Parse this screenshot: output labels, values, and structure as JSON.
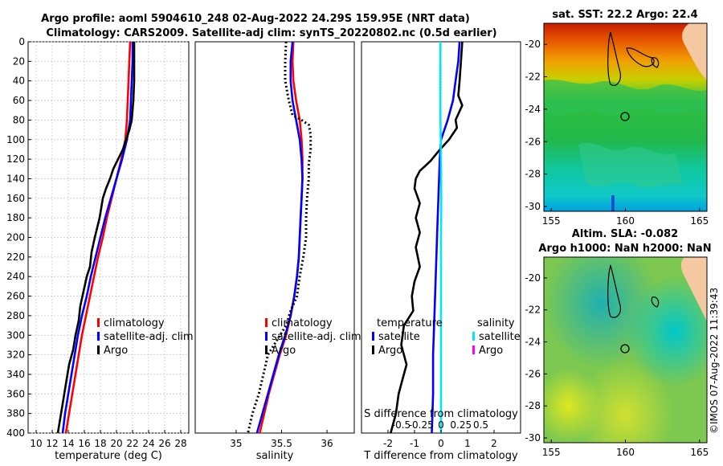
{
  "page": {
    "title_line1": "Argo profile: aoml 5904610_248 02-Aug-2022 24.29S 159.95E (NRT data)",
    "title_line2": "Climatology: CARS2009. Satellite-adj clim: synTS_20220802.nc (0.5d earlier)",
    "credit": "©IMOS 07-Aug-2022 11:39:43"
  },
  "chart_data": [
    {
      "id": "temperature",
      "type": "line",
      "xlabel": "temperature (deg C)",
      "ylabel": "",
      "xlim": [
        9,
        29
      ],
      "ylim": [
        400,
        0
      ],
      "xticks": [
        10,
        12,
        14,
        16,
        18,
        20,
        22,
        24,
        26,
        28
      ],
      "yticks": [
        0,
        20,
        40,
        60,
        80,
        100,
        120,
        140,
        160,
        180,
        200,
        220,
        240,
        260,
        280,
        300,
        320,
        340,
        360,
        380,
        400
      ],
      "grid": true,
      "legend": [
        "climatology",
        "satellite-adj. clim",
        "Argo"
      ],
      "series": [
        {
          "name": "climatology",
          "color": "#ff0000",
          "style": "solid",
          "points": [
            [
              21.7,
              0
            ],
            [
              21.6,
              20
            ],
            [
              21.5,
              40
            ],
            [
              21.4,
              60
            ],
            [
              21.3,
              80
            ],
            [
              21.1,
              100
            ],
            [
              20.6,
              120
            ],
            [
              20.0,
              140
            ],
            [
              19.4,
              160
            ],
            [
              18.8,
              180
            ],
            [
              18.3,
              200
            ],
            [
              17.7,
              220
            ],
            [
              17.2,
              240
            ],
            [
              16.7,
              260
            ],
            [
              16.2,
              280
            ],
            [
              15.7,
              300
            ],
            [
              15.3,
              320
            ],
            [
              14.9,
              340
            ],
            [
              14.5,
              360
            ],
            [
              14.1,
              380
            ],
            [
              13.7,
              400
            ]
          ]
        },
        {
          "name": "satellite-adj. clim",
          "color": "#0000ff",
          "style": "solid",
          "points": [
            [
              22.0,
              0
            ],
            [
              22.0,
              20
            ],
            [
              21.9,
              40
            ],
            [
              21.8,
              60
            ],
            [
              21.7,
              80
            ],
            [
              21.3,
              100
            ],
            [
              20.7,
              120
            ],
            [
              20.0,
              140
            ],
            [
              19.3,
              160
            ],
            [
              18.6,
              180
            ],
            [
              18.0,
              200
            ],
            [
              17.4,
              220
            ],
            [
              16.8,
              240
            ],
            [
              16.3,
              260
            ],
            [
              15.7,
              280
            ],
            [
              15.2,
              300
            ],
            [
              14.8,
              320
            ],
            [
              14.4,
              340
            ],
            [
              14.0,
              360
            ],
            [
              13.6,
              380
            ],
            [
              13.3,
              400
            ]
          ]
        },
        {
          "name": "Argo",
          "color": "#000000",
          "style": "solid",
          "points": [
            [
              22.2,
              0
            ],
            [
              22.2,
              20
            ],
            [
              22.2,
              40
            ],
            [
              22.1,
              60
            ],
            [
              21.9,
              80
            ],
            [
              21.6,
              90
            ],
            [
              21.2,
              100
            ],
            [
              20.8,
              110
            ],
            [
              20.2,
              120
            ],
            [
              19.6,
              130
            ],
            [
              19.2,
              140
            ],
            [
              18.7,
              150
            ],
            [
              18.3,
              160
            ],
            [
              18.1,
              170
            ],
            [
              17.9,
              180
            ],
            [
              17.6,
              190
            ],
            [
              17.3,
              200
            ],
            [
              16.9,
              215
            ],
            [
              16.7,
              230
            ],
            [
              16.3,
              240
            ],
            [
              15.9,
              255
            ],
            [
              15.5,
              270
            ],
            [
              15.3,
              285
            ],
            [
              14.9,
              300
            ],
            [
              14.6,
              315
            ],
            [
              14.1,
              330
            ],
            [
              13.8,
              345
            ],
            [
              13.5,
              360
            ],
            [
              13.2,
              375
            ],
            [
              12.9,
              390
            ],
            [
              12.7,
              400
            ]
          ]
        }
      ]
    },
    {
      "id": "salinity",
      "type": "line",
      "xlabel": "salinity",
      "ylabel": "",
      "xlim": [
        34.55,
        36.3
      ],
      "ylim": [
        400,
        0
      ],
      "xticks": [
        35,
        35.5,
        36
      ],
      "grid": false,
      "legend": [
        "climatology",
        "satellite-adj. clim",
        "Argo"
      ],
      "series": [
        {
          "name": "climatology",
          "color": "#ff0000",
          "style": "solid",
          "points": [
            [
              35.63,
              0
            ],
            [
              35.62,
              20
            ],
            [
              35.63,
              40
            ],
            [
              35.66,
              60
            ],
            [
              35.7,
              80
            ],
            [
              35.72,
              100
            ],
            [
              35.73,
              120
            ],
            [
              35.73,
              140
            ],
            [
              35.72,
              160
            ],
            [
              35.71,
              180
            ],
            [
              35.7,
              200
            ],
            [
              35.69,
              220
            ],
            [
              35.67,
              240
            ],
            [
              35.64,
              260
            ],
            [
              35.6,
              280
            ],
            [
              35.55,
              300
            ],
            [
              35.48,
              320
            ],
            [
              35.42,
              340
            ],
            [
              35.36,
              360
            ],
            [
              35.31,
              380
            ],
            [
              35.26,
              400
            ]
          ]
        },
        {
          "name": "satellite-adj. clim",
          "color": "#0000ff",
          "style": "solid",
          "points": [
            [
              35.62,
              0
            ],
            [
              35.6,
              20
            ],
            [
              35.6,
              40
            ],
            [
              35.62,
              60
            ],
            [
              35.66,
              80
            ],
            [
              35.7,
              100
            ],
            [
              35.72,
              120
            ],
            [
              35.73,
              140
            ],
            [
              35.72,
              160
            ],
            [
              35.71,
              180
            ],
            [
              35.7,
              200
            ],
            [
              35.69,
              220
            ],
            [
              35.67,
              240
            ],
            [
              35.64,
              260
            ],
            [
              35.6,
              280
            ],
            [
              35.54,
              300
            ],
            [
              35.47,
              320
            ],
            [
              35.41,
              340
            ],
            [
              35.35,
              360
            ],
            [
              35.29,
              380
            ],
            [
              35.23,
              400
            ]
          ]
        },
        {
          "name": "Argo",
          "color": "#000000",
          "style": "dotted",
          "points": [
            [
              35.55,
              0
            ],
            [
              35.54,
              20
            ],
            [
              35.54,
              40
            ],
            [
              35.58,
              60
            ],
            [
              35.62,
              75
            ],
            [
              35.72,
              80
            ],
            [
              35.8,
              85
            ],
            [
              35.82,
              95
            ],
            [
              35.82,
              110
            ],
            [
              35.8,
              125
            ],
            [
              35.8,
              140
            ],
            [
              35.78,
              160
            ],
            [
              35.77,
              180
            ],
            [
              35.77,
              200
            ],
            [
              35.74,
              220
            ],
            [
              35.7,
              240
            ],
            [
              35.67,
              260
            ],
            [
              35.6,
              275
            ],
            [
              35.55,
              290
            ],
            [
              35.45,
              305
            ],
            [
              35.35,
              320
            ],
            [
              35.3,
              340
            ],
            [
              35.25,
              360
            ],
            [
              35.18,
              380
            ],
            [
              35.13,
              400
            ]
          ]
        }
      ]
    },
    {
      "id": "difference",
      "type": "line",
      "xlabel": "T difference from climatology",
      "x2label": "S difference from climatology",
      "xlim": [
        -3,
        3
      ],
      "x2lim": [
        -1,
        1
      ],
      "ylim": [
        400,
        0
      ],
      "xticks": [
        -2,
        -1,
        0,
        1,
        2
      ],
      "x2ticks": [
        "-0.5",
        "-0.25",
        "0",
        "0.25",
        "0.5"
      ],
      "legend_temperature_title": "temperature",
      "legend_salinity_title": "salinity",
      "legend_temperature": [
        "satellite",
        "Argo"
      ],
      "legend_salinity": [
        "satellite",
        "Argo"
      ],
      "series": [
        {
          "name": "temperature satellite",
          "color": "#0000ff",
          "style": "solid",
          "points": [
            [
              0.7,
              0
            ],
            [
              0.65,
              20
            ],
            [
              0.55,
              40
            ],
            [
              0.45,
              60
            ],
            [
              0.25,
              80
            ],
            [
              0.0,
              100
            ],
            [
              -0.05,
              120
            ],
            [
              -0.1,
              160
            ],
            [
              -0.15,
              200
            ],
            [
              -0.2,
              240
            ],
            [
              -0.25,
              280
            ],
            [
              -0.3,
              320
            ],
            [
              -0.3,
              360
            ],
            [
              -0.35,
              400
            ]
          ]
        },
        {
          "name": "temperature Argo",
          "color": "#000000",
          "style": "solid",
          "points": [
            [
              0.8,
              0
            ],
            [
              0.75,
              20
            ],
            [
              0.7,
              40
            ],
            [
              0.65,
              55
            ],
            [
              0.8,
              65
            ],
            [
              0.55,
              80
            ],
            [
              0.6,
              88
            ],
            [
              0.3,
              100
            ],
            [
              -0.1,
              112
            ],
            [
              -0.4,
              122
            ],
            [
              -0.8,
              132
            ],
            [
              -0.95,
              140
            ],
            [
              -1.0,
              150
            ],
            [
              -0.8,
              165
            ],
            [
              -0.95,
              180
            ],
            [
              -0.8,
              195
            ],
            [
              -0.95,
              210
            ],
            [
              -0.8,
              230
            ],
            [
              -1.0,
              245
            ],
            [
              -1.1,
              260
            ],
            [
              -1.05,
              275
            ],
            [
              -1.4,
              290
            ],
            [
              -1.5,
              310
            ],
            [
              -1.3,
              330
            ],
            [
              -1.45,
              345
            ],
            [
              -1.6,
              360
            ],
            [
              -1.7,
              380
            ],
            [
              -1.9,
              400
            ]
          ]
        },
        {
          "name": "salinity satellite",
          "color": "#00e6ff",
          "style": "solid",
          "points": [
            [
              -0.02,
              0
            ],
            [
              -0.03,
              40
            ],
            [
              -0.02,
              80
            ],
            [
              0.0,
              120
            ],
            [
              0.01,
              160
            ],
            [
              0.0,
              200
            ],
            [
              0.0,
              240
            ],
            [
              0.0,
              280
            ],
            [
              0.0,
              320
            ],
            [
              0.0,
              360
            ],
            [
              0.0,
              400
            ]
          ]
        }
      ]
    },
    {
      "id": "sst-map",
      "type": "heatmap",
      "title": "sat. SST: 22.2 Argo: 22.4",
      "xlim": [
        154.5,
        165.5
      ],
      "ylim": [
        -30.3,
        -18.7
      ],
      "xticks": [
        155,
        160,
        165
      ],
      "yticks": [
        -20,
        -22,
        -24,
        -26,
        -28,
        -30
      ],
      "marker": {
        "lon": 159.95,
        "lat": -24.29
      }
    },
    {
      "id": "sla-map",
      "type": "heatmap",
      "title": "Altim. SLA: -0.082",
      "subtitle": "Argo h1000: NaN h2000: NaN",
      "xlim": [
        154.5,
        165.5
      ],
      "ylim": [
        -30.3,
        -18.7
      ],
      "xticks": [
        155,
        160,
        165
      ],
      "yticks": [
        -20,
        -22,
        -24,
        -26,
        -28,
        -30
      ],
      "marker": {
        "lon": 159.95,
        "lat": -24.29
      }
    }
  ]
}
